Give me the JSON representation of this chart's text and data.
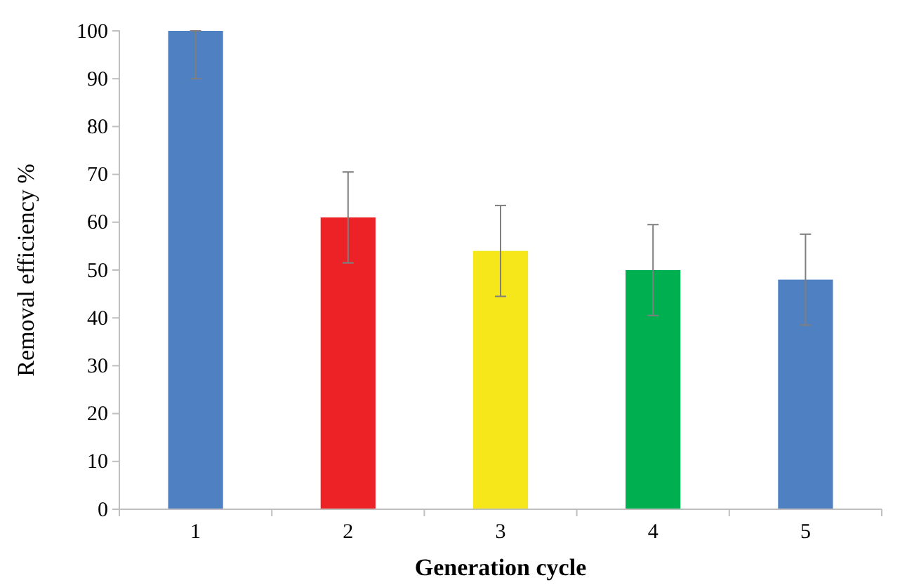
{
  "chart_data": {
    "type": "bar",
    "xlabel": "Generation cycle",
    "ylabel": "Removal efficiency %",
    "categories": [
      "1",
      "2",
      "3",
      "4",
      "5"
    ],
    "values": [
      100,
      61,
      54,
      50,
      48
    ],
    "colors": [
      "#4f81c2",
      "#ec2227",
      "#f6e71a",
      "#00b050",
      "#4f81c2"
    ],
    "errors": [
      [
        90,
        100
      ],
      [
        51.5,
        70.5
      ],
      [
        44.5,
        63.5
      ],
      [
        40.5,
        59.5
      ],
      [
        38.5,
        57.5
      ]
    ],
    "ylim": [
      0,
      100
    ],
    "yticks": [
      0,
      10,
      20,
      30,
      40,
      50,
      60,
      70,
      80,
      90,
      100
    ],
    "grid": false
  }
}
